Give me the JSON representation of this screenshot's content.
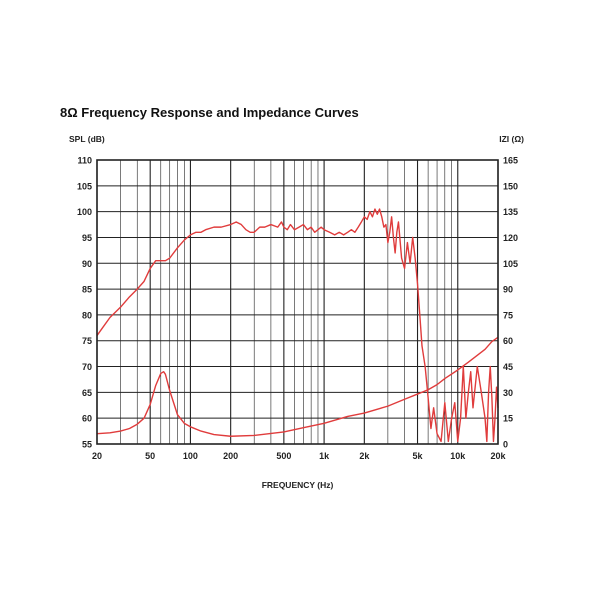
{
  "chart_data": {
    "type": "line",
    "title": "8Ω Frequency Response and Impedance Curves",
    "xlabel": "FREQUENCY (Hz)",
    "ylabel_left": "SPL (dB)",
    "ylabel_right": "IZI (Ω)",
    "x_scale": "log",
    "xlim": [
      20,
      20000
    ],
    "ylim_left": [
      55,
      110
    ],
    "ylim_right": [
      0,
      165
    ],
    "grid": true,
    "x_ticks": [
      {
        "value": 20,
        "label": "20"
      },
      {
        "value": 50,
        "label": "50"
      },
      {
        "value": 100,
        "label": "100"
      },
      {
        "value": 200,
        "label": "200"
      },
      {
        "value": 500,
        "label": "500"
      },
      {
        "value": 1000,
        "label": "1k"
      },
      {
        "value": 2000,
        "label": "2k"
      },
      {
        "value": 5000,
        "label": "5k"
      },
      {
        "value": 10000,
        "label": "10k"
      },
      {
        "value": 20000,
        "label": "20k"
      }
    ],
    "y_ticks_left": [
      "55",
      "60",
      "65",
      "70",
      "75",
      "80",
      "85",
      "90",
      "95",
      "100",
      "105",
      "110"
    ],
    "y_ticks_right": [
      "0",
      "15",
      "30",
      "45",
      "60",
      "75",
      "90",
      "105",
      "120",
      "135",
      "150",
      "165"
    ],
    "colors": {
      "curve": "#e03c3c",
      "grid": "#222222"
    },
    "series": [
      {
        "axis": "left",
        "points": [
          [
            20,
            76
          ],
          [
            22,
            77.5
          ],
          [
            25,
            79.5
          ],
          [
            30,
            81.5
          ],
          [
            35,
            83.5
          ],
          [
            40,
            85
          ],
          [
            45,
            86.5
          ],
          [
            50,
            89
          ],
          [
            55,
            90.5
          ],
          [
            60,
            90.5
          ],
          [
            65,
            90.5
          ],
          [
            70,
            91
          ],
          [
            80,
            93
          ],
          [
            90,
            94.5
          ],
          [
            100,
            95.5
          ],
          [
            110,
            96
          ],
          [
            120,
            96
          ],
          [
            130,
            96.5
          ],
          [
            150,
            97
          ],
          [
            170,
            97
          ],
          [
            200,
            97.5
          ],
          [
            220,
            98
          ],
          [
            240,
            97.5
          ],
          [
            260,
            96.5
          ],
          [
            280,
            96
          ],
          [
            300,
            96
          ],
          [
            330,
            97
          ],
          [
            360,
            97
          ],
          [
            400,
            97.5
          ],
          [
            450,
            97
          ],
          [
            480,
            98
          ],
          [
            500,
            97
          ],
          [
            530,
            96.5
          ],
          [
            560,
            97.5
          ],
          [
            600,
            96.5
          ],
          [
            650,
            97
          ],
          [
            700,
            97.5
          ],
          [
            750,
            96.5
          ],
          [
            800,
            97
          ],
          [
            850,
            96
          ],
          [
            900,
            96.5
          ],
          [
            950,
            97
          ],
          [
            1000,
            96.5
          ],
          [
            1100,
            96
          ],
          [
            1200,
            95.5
          ],
          [
            1300,
            96
          ],
          [
            1400,
            95.5
          ],
          [
            1500,
            96
          ],
          [
            1600,
            96.5
          ],
          [
            1700,
            96
          ],
          [
            1800,
            97
          ],
          [
            1900,
            98
          ],
          [
            2000,
            99
          ],
          [
            2100,
            98.5
          ],
          [
            2200,
            100
          ],
          [
            2300,
            99
          ],
          [
            2400,
            100.5
          ],
          [
            2500,
            99.5
          ],
          [
            2600,
            100.5
          ],
          [
            2700,
            99
          ],
          [
            2800,
            97
          ],
          [
            2900,
            97.5
          ],
          [
            3000,
            94
          ],
          [
            3100,
            96
          ],
          [
            3200,
            99
          ],
          [
            3300,
            95
          ],
          [
            3400,
            92
          ],
          [
            3500,
            96
          ],
          [
            3600,
            98
          ],
          [
            3800,
            91
          ],
          [
            4000,
            89
          ],
          [
            4200,
            94
          ],
          [
            4400,
            90
          ],
          [
            4600,
            95
          ],
          [
            4800,
            91
          ],
          [
            5000,
            86
          ],
          [
            5200,
            80
          ],
          [
            5400,
            74
          ],
          [
            5700,
            70
          ],
          [
            6000,
            64
          ],
          [
            6300,
            58
          ],
          [
            6600,
            62
          ],
          [
            7000,
            57
          ],
          [
            7500,
            55.5
          ],
          [
            8000,
            63
          ],
          [
            8500,
            55.5
          ],
          [
            9000,
            60
          ],
          [
            9500,
            63
          ],
          [
            10000,
            55.5
          ],
          [
            10500,
            60
          ],
          [
            11000,
            70
          ],
          [
            11500,
            60
          ],
          [
            12000,
            65
          ],
          [
            12500,
            69
          ],
          [
            13000,
            62
          ],
          [
            14000,
            70
          ],
          [
            15000,
            65
          ],
          [
            16000,
            60
          ],
          [
            16500,
            55.5
          ],
          [
            17000,
            65
          ],
          [
            17500,
            70
          ],
          [
            18000,
            64
          ],
          [
            18500,
            55.5
          ],
          [
            19000,
            60
          ],
          [
            19500,
            66
          ],
          [
            20000,
            62
          ]
        ]
      },
      {
        "axis": "right",
        "points": [
          [
            20,
            6
          ],
          [
            25,
            6.5
          ],
          [
            30,
            7.5
          ],
          [
            35,
            9
          ],
          [
            40,
            11.5
          ],
          [
            45,
            15
          ],
          [
            50,
            23
          ],
          [
            55,
            34
          ],
          [
            60,
            41
          ],
          [
            63,
            42
          ],
          [
            65,
            40.5
          ],
          [
            70,
            31
          ],
          [
            80,
            17
          ],
          [
            90,
            12
          ],
          [
            100,
            10
          ],
          [
            120,
            7.5
          ],
          [
            150,
            5.5
          ],
          [
            200,
            4.5
          ],
          [
            300,
            5
          ],
          [
            500,
            7
          ],
          [
            700,
            9.5
          ],
          [
            1000,
            12
          ],
          [
            1500,
            16
          ],
          [
            2000,
            18
          ],
          [
            3000,
            22
          ],
          [
            4000,
            26
          ],
          [
            5000,
            29
          ],
          [
            6000,
            31.5
          ],
          [
            7000,
            34.5
          ],
          [
            8000,
            38
          ],
          [
            10000,
            43
          ],
          [
            12000,
            47.5
          ],
          [
            14000,
            51.5
          ],
          [
            16000,
            55
          ],
          [
            18000,
            59.5
          ],
          [
            20000,
            62
          ]
        ]
      }
    ]
  }
}
